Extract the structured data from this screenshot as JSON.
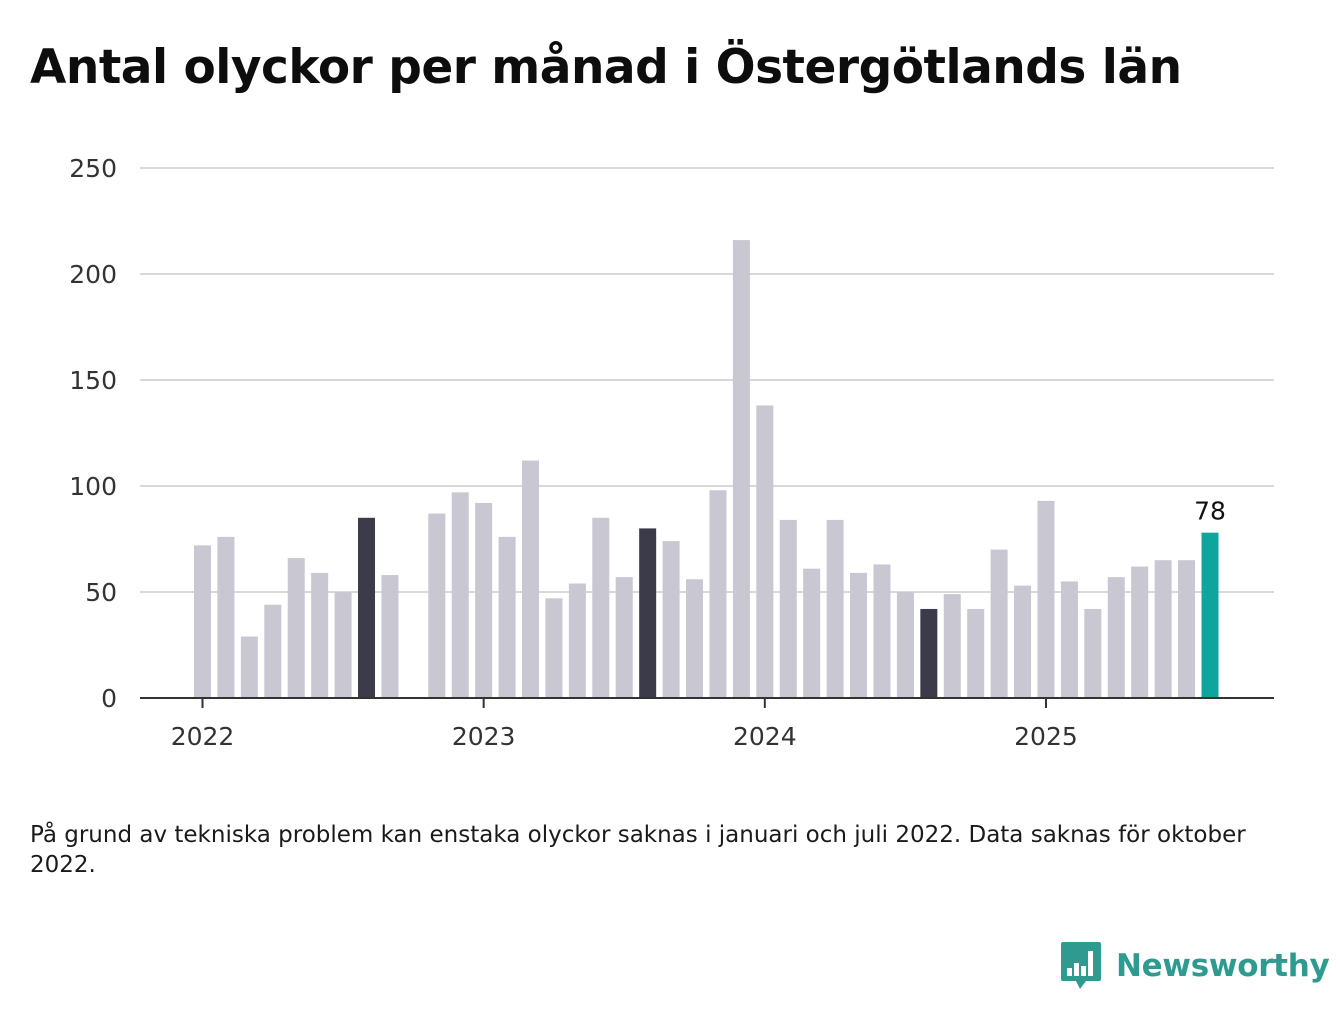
{
  "title": "Antal olyckor per månad i Östergötlands län",
  "note": "På grund av tekniska problem kan enstaka olyckor saknas i januari och juli 2022. Data saknas för oktober 2022.",
  "brand": {
    "name": "Newsworthy",
    "icon": "newsworthy-chart-bubble-icon",
    "color": "#2f9a90"
  },
  "colors": {
    "bar": "#c8c7d2",
    "highlight": "#3b3b49",
    "latest": "#0ea59d",
    "grid": "#d9d9d9",
    "axis": "#333333"
  },
  "chart_data": {
    "type": "bar",
    "title": "Antal olyckor per månad i Östergötlands län",
    "xlabel": "",
    "ylabel": "",
    "ylim": [
      0,
      250
    ],
    "yticks": [
      0,
      50,
      100,
      150,
      200,
      250
    ],
    "xticks": [
      {
        "label": "2022",
        "month": "2022-01"
      },
      {
        "label": "2023",
        "month": "2023-01"
      },
      {
        "label": "2024",
        "month": "2024-01"
      },
      {
        "label": "2025",
        "month": "2025-01"
      }
    ],
    "grid": true,
    "data_label": "78",
    "series": [
      {
        "x": [
          "2022-01",
          "2022-02",
          "2022-03",
          "2022-04",
          "2022-05",
          "2022-06",
          "2022-07",
          "2022-08",
          "2022-09",
          "2022-10",
          "2022-11",
          "2022-12",
          "2023-01",
          "2023-02",
          "2023-03",
          "2023-04",
          "2023-05",
          "2023-06",
          "2023-07",
          "2023-08",
          "2023-09",
          "2023-10",
          "2023-11",
          "2023-12",
          "2024-01",
          "2024-02",
          "2024-03",
          "2024-04",
          "2024-05",
          "2024-06",
          "2024-07",
          "2024-08",
          "2024-09",
          "2024-10",
          "2024-11",
          "2024-12",
          "2025-01",
          "2025-02",
          "2025-03",
          "2025-04",
          "2025-05",
          "2025-06",
          "2025-07",
          "2025-08"
        ],
        "values": [
          72,
          76,
          29,
          44,
          66,
          59,
          50,
          85,
          58,
          null,
          87,
          97,
          92,
          76,
          112,
          47,
          54,
          85,
          57,
          80,
          74,
          56,
          98,
          216,
          138,
          84,
          61,
          84,
          59,
          63,
          50,
          42,
          49,
          42,
          70,
          53,
          93,
          55,
          42,
          57,
          62,
          65,
          65,
          78
        ],
        "highlighted": [
          "2022-08",
          "2023-08",
          "2024-08"
        ],
        "latest": "2025-08"
      }
    ]
  }
}
